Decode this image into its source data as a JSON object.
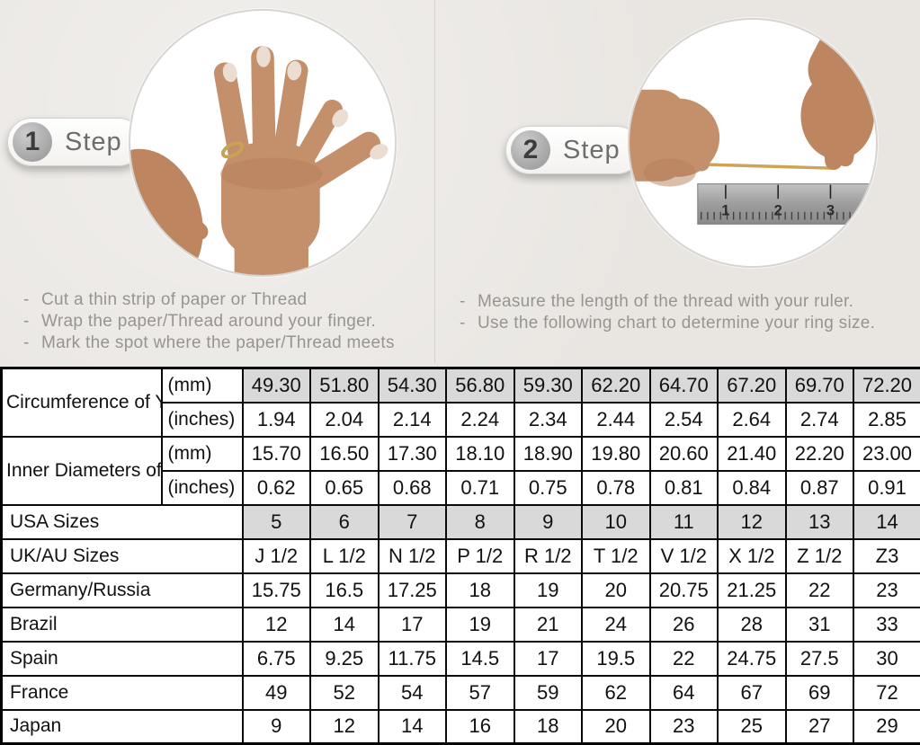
{
  "steps": [
    {
      "number": "1",
      "label": "Step",
      "instructions": [
        "Cut a thin strip of paper or Thread",
        "Wrap the paper/Thread around your finger.",
        "Mark the spot where the paper/Thread meets"
      ]
    },
    {
      "number": "2",
      "label": "Step",
      "instructions": [
        "Measure the length of the thread with your ruler.",
        "Use the following chart to determine your ring size."
      ],
      "ruler_numbers": [
        "1",
        "2",
        "3"
      ]
    }
  ],
  "table": {
    "highlight_color": "#d9d9d9",
    "row_groups": [
      {
        "label": "Circumference of Your Finger",
        "rows": [
          {
            "unit": "(mm)",
            "highlight": true,
            "values": [
              "49.30",
              "51.80",
              "54.30",
              "56.80",
              "59.30",
              "62.20",
              "64.70",
              "67.20",
              "69.70",
              "72.20"
            ]
          },
          {
            "unit": "(inches)",
            "highlight": false,
            "values": [
              "1.94",
              "2.04",
              "2.14",
              "2.24",
              "2.34",
              "2.44",
              "2.54",
              "2.64",
              "2.74",
              "2.85"
            ]
          }
        ]
      },
      {
        "label": "Inner Diameters of Rings",
        "rows": [
          {
            "unit": "(mm)",
            "highlight": false,
            "values": [
              "15.70",
              "16.50",
              "17.30",
              "18.10",
              "18.90",
              "19.80",
              "20.60",
              "21.40",
              "22.20",
              "23.00"
            ]
          },
          {
            "unit": "(inches)",
            "highlight": false,
            "values": [
              "0.62",
              "0.65",
              "0.68",
              "0.71",
              "0.75",
              "0.78",
              "0.81",
              "0.84",
              "0.87",
              "0.91"
            ]
          }
        ]
      }
    ],
    "size_rows": [
      {
        "label": "USA Sizes",
        "highlight": true,
        "values": [
          "5",
          "6",
          "7",
          "8",
          "9",
          "10",
          "11",
          "12",
          "13",
          "14"
        ]
      },
      {
        "label": "UK/AU Sizes",
        "highlight": false,
        "values": [
          "J 1/2",
          "L 1/2",
          "N 1/2",
          "P 1/2",
          "R 1/2",
          "T 1/2",
          "V 1/2",
          "X 1/2",
          "Z 1/2",
          "Z3"
        ]
      },
      {
        "label": "Germany/Russia",
        "highlight": false,
        "values": [
          "15.75",
          "16.5",
          "17.25",
          "18",
          "19",
          "20",
          "20.75",
          "21.25",
          "22",
          "23"
        ]
      },
      {
        "label": "Brazil",
        "highlight": false,
        "values": [
          "12",
          "14",
          "17",
          "19",
          "21",
          "24",
          "26",
          "28",
          "31",
          "33"
        ]
      },
      {
        "label": "Spain",
        "highlight": false,
        "values": [
          "6.75",
          "9.25",
          "11.75",
          "14.5",
          "17",
          "19.5",
          "22",
          "24.75",
          "27.5",
          "30"
        ]
      },
      {
        "label": "France",
        "highlight": false,
        "values": [
          "49",
          "52",
          "54",
          "57",
          "59",
          "62",
          "64",
          "67",
          "69",
          "72"
        ]
      },
      {
        "label": "Japan",
        "highlight": false,
        "values": [
          "9",
          "12",
          "14",
          "16",
          "18",
          "20",
          "23",
          "25",
          "27",
          "29"
        ]
      }
    ]
  }
}
